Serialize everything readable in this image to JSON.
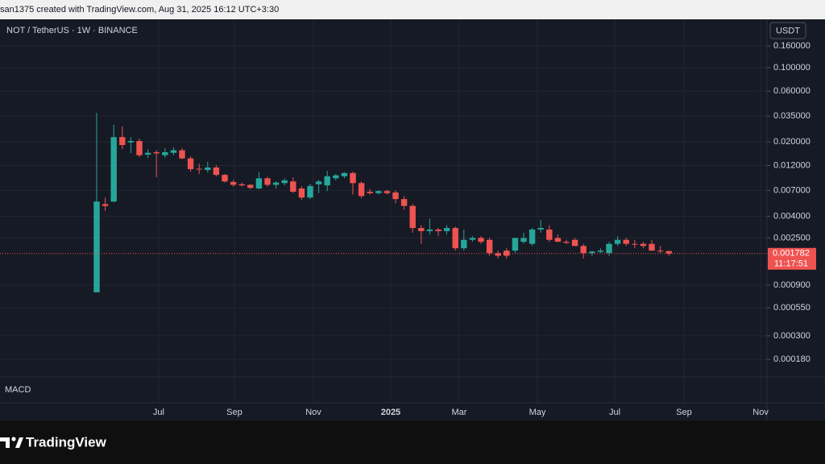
{
  "header": {
    "caption": "san1375 created with TradingView.com, Aug 31, 2025 16:12 UTC+3:30"
  },
  "footer": {
    "brand": "TradingView"
  },
  "chart_data": {
    "type": "candlestick",
    "title": "NOT / TetherUS · 1W · BINANCE",
    "currency": "USDT",
    "indicator": "MACD",
    "log_scale": true,
    "grid": true,
    "up_color": "#26a69a",
    "down_color": "#ef5350",
    "x": [
      0,
      1,
      2,
      3,
      4,
      5,
      6,
      7,
      8,
      9,
      10,
      11,
      12,
      13,
      14,
      15,
      16,
      17,
      18,
      19,
      20,
      21,
      22,
      23,
      24,
      25,
      26,
      27,
      28,
      29,
      30,
      31,
      32,
      33,
      34,
      35,
      36,
      37,
      38,
      39,
      40,
      41,
      42,
      43,
      44,
      45,
      46,
      47,
      48,
      49,
      50,
      51,
      52,
      53,
      54,
      55,
      56,
      57,
      58,
      59,
      60,
      61,
      62,
      63,
      64,
      65,
      66,
      67
    ],
    "open": [
      0.00077,
      0.0052,
      0.0055,
      0.0222,
      0.0198,
      0.0204,
      0.0152,
      0.016,
      0.015,
      0.0158,
      0.0167,
      0.014,
      0.0112,
      0.0109,
      0.0115,
      0.0098,
      0.0084,
      0.008,
      0.0079,
      0.0073,
      0.0091,
      0.0079,
      0.0082,
      0.0085,
      0.0073,
      0.006,
      0.008,
      0.0078,
      0.0091,
      0.0095,
      0.0102,
      0.0082,
      0.0068,
      0.0066,
      0.0069,
      0.0067,
      0.0058,
      0.005,
      0.0031,
      0.0029,
      0.003,
      0.0029,
      0.0031,
      0.002,
      0.0024,
      0.0025,
      0.0024,
      0.0018,
      0.0019,
      0.0019,
      0.0023,
      0.0022,
      0.003,
      0.003,
      0.0025,
      0.0023,
      0.0024,
      0.0021,
      0.0018,
      0.00185,
      0.0018,
      0.0022,
      0.0024,
      0.0022,
      0.0022,
      0.0022,
      0.0019,
      0.00188
    ],
    "high": [
      0.0376,
      0.006,
      0.029,
      0.028,
      0.0222,
      0.0215,
      0.0171,
      0.0168,
      0.0175,
      0.0178,
      0.0175,
      0.0146,
      0.0125,
      0.013,
      0.0121,
      0.01,
      0.0088,
      0.0083,
      0.008,
      0.0104,
      0.0094,
      0.0085,
      0.0091,
      0.0093,
      0.0077,
      0.0081,
      0.0088,
      0.0107,
      0.01,
      0.0104,
      0.0105,
      0.0085,
      0.0072,
      0.007,
      0.0071,
      0.007,
      0.0062,
      0.0052,
      0.0033,
      0.0038,
      0.0031,
      0.0033,
      0.0032,
      0.003,
      0.0026,
      0.0026,
      0.0025,
      0.0019,
      0.002,
      0.0025,
      0.0028,
      0.0031,
      0.0037,
      0.0033,
      0.0027,
      0.0024,
      0.0025,
      0.0022,
      0.0019,
      0.002,
      0.0023,
      0.0026,
      0.0025,
      0.0024,
      0.0023,
      0.0024,
      0.0021,
      0.0019
    ],
    "low": [
      0.00077,
      0.0045,
      0.0054,
      0.0171,
      0.0157,
      0.0144,
      0.0142,
      0.0093,
      0.0142,
      0.015,
      0.0138,
      0.0105,
      0.01,
      0.0103,
      0.0095,
      0.0083,
      0.0076,
      0.0076,
      0.0072,
      0.0072,
      0.0076,
      0.0073,
      0.0078,
      0.0066,
      0.0057,
      0.0058,
      0.0066,
      0.0069,
      0.0087,
      0.0091,
      0.0064,
      0.0059,
      0.0064,
      0.0064,
      0.0064,
      0.0053,
      0.0046,
      0.0028,
      0.0022,
      0.0027,
      0.0026,
      0.0027,
      0.0019,
      0.0019,
      0.0023,
      0.0022,
      0.0017,
      0.0016,
      0.0016,
      0.0018,
      0.0022,
      0.0021,
      0.0028,
      0.0023,
      0.0023,
      0.0022,
      0.0021,
      0.0016,
      0.0017,
      0.0018,
      0.0017,
      0.0021,
      0.0021,
      0.002,
      0.002,
      0.0019,
      0.0018,
      0.0017
    ],
    "close": [
      0.0055,
      0.005,
      0.0222,
      0.0187,
      0.0204,
      0.015,
      0.0158,
      0.0156,
      0.016,
      0.0167,
      0.014,
      0.0111,
      0.011,
      0.0115,
      0.0098,
      0.0085,
      0.0079,
      0.0078,
      0.0074,
      0.0091,
      0.0079,
      0.0083,
      0.0087,
      0.0068,
      0.006,
      0.0077,
      0.0085,
      0.0095,
      0.0097,
      0.0102,
      0.0082,
      0.0062,
      0.0066,
      0.0069,
      0.0066,
      0.0058,
      0.005,
      0.0031,
      0.0029,
      0.003,
      0.0029,
      0.0031,
      0.002,
      0.0024,
      0.0025,
      0.0023,
      0.0018,
      0.0017,
      0.0017,
      0.0025,
      0.0025,
      0.003,
      0.0031,
      0.0024,
      0.0023,
      0.00225,
      0.0021,
      0.0018,
      0.00186,
      0.0019,
      0.0022,
      0.0024,
      0.0022,
      0.00218,
      0.0021,
      0.0019,
      0.00188,
      0.001782
    ],
    "xlim": [
      -11.32,
      78.49
    ],
    "xticks": [
      {
        "value": 7.26,
        "label": "Jul"
      },
      {
        "value": 16.13,
        "label": "Sep"
      },
      {
        "value": 25.38,
        "label": "Nov"
      },
      {
        "value": 34.43,
        "label": "2025"
      },
      {
        "value": 42.45,
        "label": "Mar"
      },
      {
        "value": 51.6,
        "label": "May"
      },
      {
        "value": 60.66,
        "label": "Jul"
      },
      {
        "value": 68.77,
        "label": "Sep"
      },
      {
        "value": 77.74,
        "label": "Nov"
      }
    ],
    "ylim": [
      0.000123,
      0.2846
    ],
    "yticks": [
      {
        "value": 0.16,
        "label": "0.160000"
      },
      {
        "value": 0.1,
        "label": "0.100000"
      },
      {
        "value": 0.06,
        "label": "0.060000"
      },
      {
        "value": 0.035,
        "label": "0.035000"
      },
      {
        "value": 0.02,
        "label": "0.020000"
      },
      {
        "value": 0.012,
        "label": "0.012000"
      },
      {
        "value": 0.007,
        "label": "0.007000"
      },
      {
        "value": 0.004,
        "label": "0.004000"
      },
      {
        "value": 0.0025,
        "label": "0.002500"
      },
      {
        "value": 0.0009,
        "label": "0.000900"
      },
      {
        "value": 0.00055,
        "label": "0.000550"
      },
      {
        "value": 0.0003,
        "label": "0.000300"
      },
      {
        "value": 0.00018,
        "label": "0.000180"
      }
    ],
    "last_price": 0.001782,
    "countdown": "11:17:51"
  }
}
